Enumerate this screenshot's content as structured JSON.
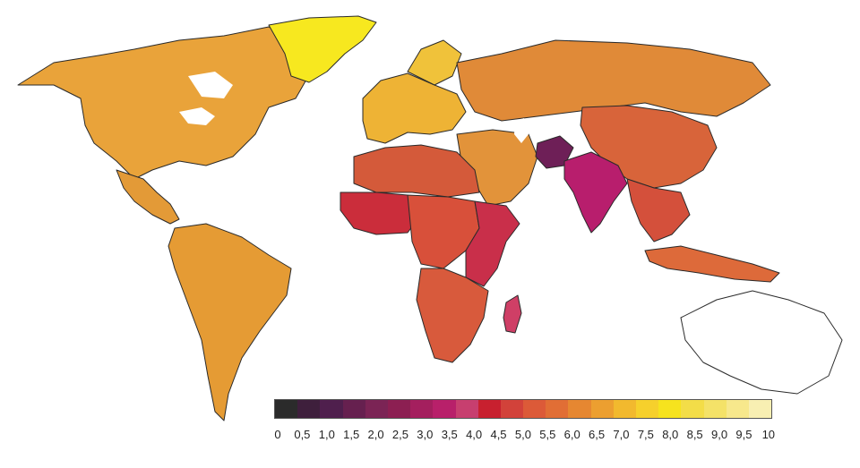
{
  "map": {
    "regions": [
      {
        "name": "north-america",
        "color": "#e9a33a"
      },
      {
        "name": "greenland",
        "color": "#f7e81f"
      },
      {
        "name": "central-america",
        "color": "#e39a37"
      },
      {
        "name": "south-america",
        "color": "#e59b34"
      },
      {
        "name": "europe",
        "color": "#eeb335"
      },
      {
        "name": "scandinavia",
        "color": "#f0c23a"
      },
      {
        "name": "russia",
        "color": "#e08a38"
      },
      {
        "name": "middle-east",
        "color": "#e2933a"
      },
      {
        "name": "north-africa",
        "color": "#d45a3a"
      },
      {
        "name": "west-africa",
        "color": "#cb2d3b"
      },
      {
        "name": "central-africa",
        "color": "#d8503a"
      },
      {
        "name": "east-africa",
        "color": "#c92f4a"
      },
      {
        "name": "southern-africa",
        "color": "#d85a3c"
      },
      {
        "name": "madagascar",
        "color": "#cf3f66"
      },
      {
        "name": "china",
        "color": "#d8643a"
      },
      {
        "name": "india",
        "color": "#b81e6d"
      },
      {
        "name": "afghanistan",
        "color": "#6e1f57"
      },
      {
        "name": "southeast-asia",
        "color": "#d4503b"
      },
      {
        "name": "indonesia",
        "color": "#dd6a3a"
      },
      {
        "name": "australia",
        "color": "#ffffff"
      }
    ]
  },
  "legend": {
    "colors": [
      "#2b2b2b",
      "#3e1f3c",
      "#4f1f4d",
      "#66204f",
      "#7b2455",
      "#8c1f52",
      "#a41f5e",
      "#b8206a",
      "#c73f6f",
      "#c8202f",
      "#d2423a",
      "#dc5a38",
      "#e16e35",
      "#e68731",
      "#ec9f30",
      "#f2b92e",
      "#f6d02c",
      "#f6e31e",
      "#f3dd48",
      "#f4e268",
      "#f7e88c",
      "#f8efb2"
    ],
    "ticks": [
      "0",
      "0,5",
      "1,0",
      "1,5",
      "2,0",
      "2,5",
      "3,0",
      "3,5",
      "4,0",
      "4,5",
      "5,0",
      "5,5",
      "6,0",
      "6,5",
      "7,0",
      "7,5",
      "8,0",
      "8,5",
      "9,0",
      "9,5",
      "10"
    ]
  }
}
